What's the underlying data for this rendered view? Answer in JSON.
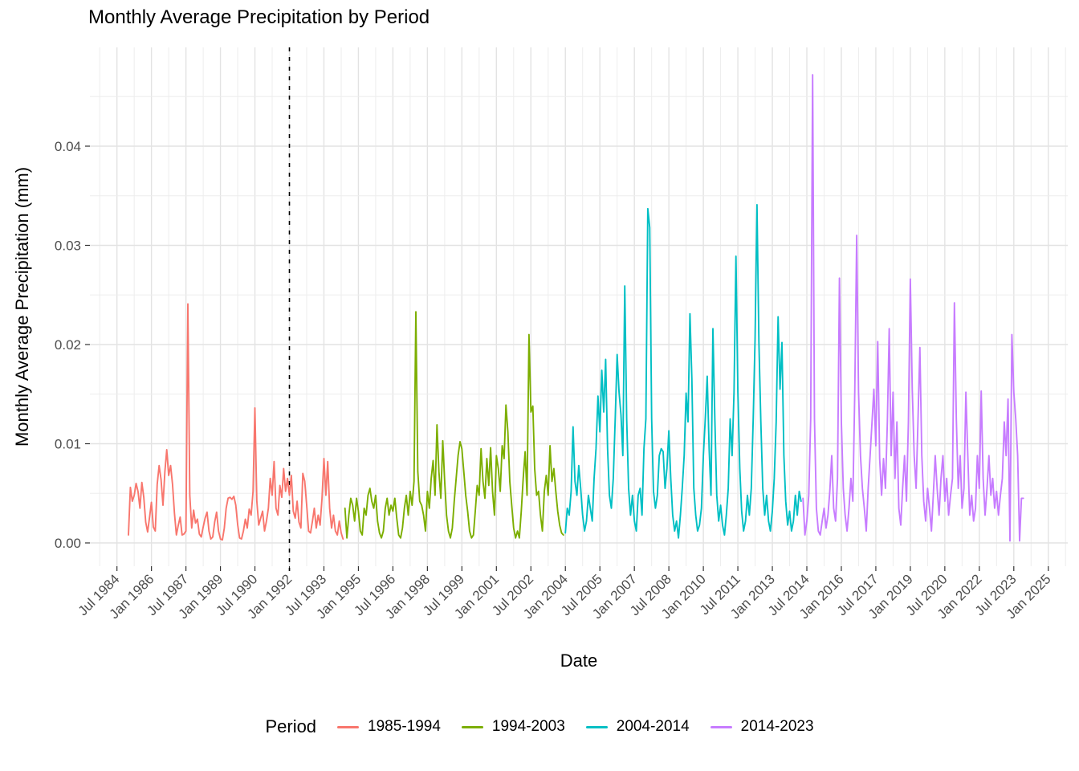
{
  "chart_data": {
    "type": "line",
    "title": "Monthly Average Precipitation by Period",
    "xlabel": "Date",
    "ylabel": "Monthly Average Precipitation (mm)",
    "y_tick_labels": [
      "0.00",
      "0.01",
      "0.02",
      "0.03",
      "0.04"
    ],
    "y_tick_values": [
      0,
      0.01,
      0.02,
      0.03,
      0.04
    ],
    "y_minor_values": [
      0.005,
      0.015,
      0.025,
      0.035,
      0.045
    ],
    "ylim": [
      0,
      0.0475
    ],
    "x_tick_labels": [
      "Jul 1984",
      "Jan 1986",
      "Jul 1987",
      "Jan 1989",
      "Jul 1990",
      "Jan 1992",
      "Jul 1993",
      "Jan 1995",
      "Jul 1996",
      "Jan 1998",
      "Jul 1999",
      "Jan 2001",
      "Jul 2002",
      "Jan 2004",
      "Jul 2005",
      "Jan 2007",
      "Jul 2008",
      "Jan 2010",
      "Jul 2011",
      "Jan 2013",
      "Jul 2014",
      "Jan 2016",
      "Jul 2017",
      "Jan 2019",
      "Jul 2020",
      "Jan 2022",
      "Jul 2023",
      "Jan 2025"
    ],
    "grid": true,
    "legend_title": "Period",
    "legend_position": "bottom",
    "vline": {
      "date": "1992-01",
      "style": "dashed",
      "color": "#000000"
    },
    "colors": {
      "period1": "#F8766D",
      "period2": "#7CAE00",
      "period3": "#00BFC4",
      "period4": "#C77CFF",
      "grid_major": "#E3E3E3",
      "grid_minor": "#EDEDED",
      "axis_text": "#4D4D4D"
    },
    "series": [
      {
        "name": "1985-1994",
        "color": "#F8766D",
        "start": "1985-01",
        "values": [
          0.0008,
          0.0056,
          0.0042,
          0.0048,
          0.006,
          0.0052,
          0.0035,
          0.0061,
          0.0046,
          0.0021,
          0.0011,
          0.0026,
          0.0041,
          0.0016,
          0.0012,
          0.0059,
          0.0078,
          0.0064,
          0.0038,
          0.0072,
          0.0094,
          0.0068,
          0.0078,
          0.0059,
          0.003,
          0.0008,
          0.0018,
          0.0026,
          0.0008,
          0.0009,
          0.0012,
          0.0241,
          0.0048,
          0.0015,
          0.0033,
          0.002,
          0.0024,
          0.0009,
          0.0006,
          0.0016,
          0.0025,
          0.0031,
          0.0012,
          0.0004,
          0.0006,
          0.0021,
          0.0031,
          0.0012,
          0.0004,
          0.0003,
          0.0015,
          0.0035,
          0.0045,
          0.0046,
          0.0044,
          0.0047,
          0.0038,
          0.0018,
          0.0005,
          0.0004,
          0.0012,
          0.0024,
          0.0015,
          0.0034,
          0.0028,
          0.0052,
          0.0136,
          0.0042,
          0.0018,
          0.0025,
          0.0032,
          0.0012,
          0.0022,
          0.0035,
          0.0065,
          0.0048,
          0.0082,
          0.0035,
          0.0028,
          0.0058,
          0.0046,
          0.0075,
          0.0052,
          0.0065,
          0.0048,
          0.0068,
          0.0032,
          0.0025,
          0.0042,
          0.0021,
          0.0015,
          0.007,
          0.0062,
          0.0038,
          0.0012,
          0.001,
          0.0022,
          0.0035,
          0.0015,
          0.0028,
          0.0018,
          0.0045,
          0.0085,
          0.0048,
          0.0082,
          0.0035,
          0.0015,
          0.0028,
          0.0012,
          0.0008,
          0.0022,
          0.001,
          0.0004
        ]
      },
      {
        "name": "1994-2003",
        "color": "#7CAE00",
        "start": "1994-06",
        "values": [
          0.0035,
          0.0005,
          0.0028,
          0.0045,
          0.0038,
          0.0022,
          0.0045,
          0.0032,
          0.0012,
          0.0008,
          0.0035,
          0.0028,
          0.0048,
          0.0055,
          0.0042,
          0.0035,
          0.0048,
          0.0022,
          0.001,
          0.0005,
          0.0012,
          0.0035,
          0.0045,
          0.0028,
          0.0038,
          0.0032,
          0.0045,
          0.0025,
          0.0008,
          0.0005,
          0.0015,
          0.0035,
          0.0048,
          0.0028,
          0.0052,
          0.0038,
          0.0062,
          0.0233,
          0.0072,
          0.0042,
          0.0038,
          0.0028,
          0.0012,
          0.0052,
          0.0035,
          0.0065,
          0.0083,
          0.0048,
          0.0119,
          0.0072,
          0.0045,
          0.0103,
          0.0062,
          0.0028,
          0.0012,
          0.0005,
          0.0015,
          0.0042,
          0.0065,
          0.0088,
          0.0102,
          0.0095,
          0.0072,
          0.0048,
          0.0032,
          0.0012,
          0.0005,
          0.0008,
          0.0032,
          0.0058,
          0.0048,
          0.0095,
          0.0062,
          0.0045,
          0.0085,
          0.0058,
          0.0096,
          0.0052,
          0.0028,
          0.0088,
          0.0075,
          0.0052,
          0.0098,
          0.0085,
          0.0139,
          0.0112,
          0.0062,
          0.0038,
          0.0015,
          0.0005,
          0.0012,
          0.0005,
          0.0032,
          0.0065,
          0.0092,
          0.0048,
          0.021,
          0.0132,
          0.0138,
          0.0075,
          0.0048,
          0.0052,
          0.0028,
          0.0012,
          0.0052,
          0.0068,
          0.0048,
          0.0098,
          0.0062,
          0.0075,
          0.0052,
          0.0032,
          0.0018,
          0.001,
          0.0008
        ]
      },
      {
        "name": "2004-2014",
        "color": "#00BFC4",
        "start": "2004-01",
        "values": [
          0.001,
          0.0035,
          0.0028,
          0.0052,
          0.0117,
          0.0062,
          0.0048,
          0.0078,
          0.0055,
          0.0028,
          0.0012,
          0.0022,
          0.0048,
          0.0035,
          0.0022,
          0.0065,
          0.0095,
          0.0148,
          0.0112,
          0.0174,
          0.0132,
          0.0185,
          0.0095,
          0.0048,
          0.0035,
          0.0065,
          0.0125,
          0.019,
          0.0152,
          0.0129,
          0.0088,
          0.0259,
          0.0125,
          0.0055,
          0.0028,
          0.0048,
          0.0022,
          0.0012,
          0.0048,
          0.0055,
          0.0028,
          0.0095,
          0.0125,
          0.0337,
          0.0318,
          0.0125,
          0.0052,
          0.0035,
          0.0048,
          0.0088,
          0.0095,
          0.0092,
          0.0055,
          0.0075,
          0.0113,
          0.0065,
          0.0028,
          0.0012,
          0.0022,
          0.0005,
          0.0028,
          0.0055,
          0.0088,
          0.0151,
          0.0122,
          0.0231,
          0.0165,
          0.0055,
          0.0028,
          0.0012,
          0.0018,
          0.0035,
          0.0088,
          0.0125,
          0.0168,
          0.0095,
          0.0048,
          0.0216,
          0.0125,
          0.0048,
          0.0022,
          0.0038,
          0.0018,
          0.0008,
          0.0028,
          0.0055,
          0.0125,
          0.0088,
          0.0152,
          0.0289,
          0.0152,
          0.0075,
          0.0032,
          0.0012,
          0.0022,
          0.0048,
          0.0028,
          0.0055,
          0.0125,
          0.0205,
          0.0341,
          0.0202,
          0.0122,
          0.0055,
          0.0028,
          0.0048,
          0.0022,
          0.0012,
          0.0032,
          0.0065,
          0.0122,
          0.0228,
          0.0155,
          0.0202,
          0.0088,
          0.0042,
          0.0018,
          0.0032,
          0.0012,
          0.0022,
          0.0048,
          0.0028,
          0.0052,
          0.0042
        ]
      },
      {
        "name": "2014-2023",
        "color": "#C77CFF",
        "start": "2014-05",
        "values": [
          0.0045,
          0.0008,
          0.0022,
          0.0048,
          0.0125,
          0.0472,
          0.0125,
          0.0035,
          0.0012,
          0.0008,
          0.0022,
          0.0035,
          0.0015,
          0.0028,
          0.0052,
          0.0088,
          0.0035,
          0.0022,
          0.0065,
          0.0267,
          0.0122,
          0.0055,
          0.0028,
          0.0012,
          0.0035,
          0.0065,
          0.0042,
          0.0152,
          0.031,
          0.0152,
          0.0088,
          0.0055,
          0.0035,
          0.0012,
          0.0055,
          0.0088,
          0.0122,
          0.0155,
          0.0098,
          0.0203,
          0.0085,
          0.0048,
          0.0085,
          0.0055,
          0.0122,
          0.0216,
          0.0088,
          0.0152,
          0.0065,
          0.0122,
          0.0035,
          0.0018,
          0.0055,
          0.0088,
          0.0042,
          0.0122,
          0.0266,
          0.0155,
          0.0088,
          0.0055,
          0.0122,
          0.0197,
          0.0088,
          0.0042,
          0.0022,
          0.0055,
          0.0035,
          0.0012,
          0.0048,
          0.0088,
          0.0055,
          0.0028,
          0.0065,
          0.0088,
          0.0042,
          0.0065,
          0.0028,
          0.0048,
          0.0065,
          0.0242,
          0.0125,
          0.0055,
          0.0088,
          0.0035,
          0.0055,
          0.0152,
          0.0088,
          0.0028,
          0.0048,
          0.0022,
          0.0035,
          0.0088,
          0.0055,
          0.0153,
          0.0065,
          0.0028,
          0.0055,
          0.0088,
          0.0048,
          0.0065,
          0.0035,
          0.0052,
          0.0028,
          0.0048,
          0.0065,
          0.0122,
          0.0088,
          0.0145,
          0.0002,
          0.021,
          0.0152,
          0.0125,
          0.0088,
          0.0002,
          0.0045,
          0.0045
        ]
      }
    ]
  }
}
